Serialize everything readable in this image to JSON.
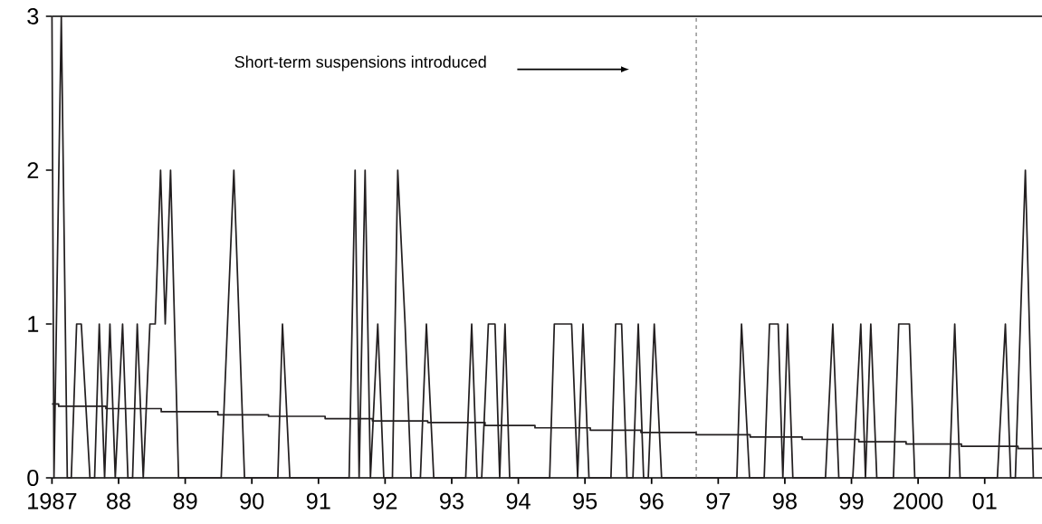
{
  "chart_data": {
    "type": "line",
    "series": [
      {
        "type": "line",
        "color": "#231f20",
        "x": [
          1987.0,
          1987.03,
          1987.14,
          1987.23,
          1987.29,
          1987.37,
          1987.44,
          1987.57,
          1987.64,
          1987.71,
          1987.79,
          1987.87,
          1987.95,
          1988.06,
          1988.14,
          1988.21,
          1988.28,
          1988.37,
          1988.47,
          1988.55,
          1988.63,
          1988.7,
          1988.78,
          1988.9,
          1989.54,
          1989.73,
          1989.89,
          1990.39,
          1990.46,
          1990.57,
          1991.46,
          1991.55,
          1991.61,
          1991.7,
          1991.78,
          1991.89,
          1991.98,
          1992.11,
          1992.19,
          1992.3,
          1992.39,
          1992.53,
          1992.62,
          1992.73,
          1993.21,
          1993.3,
          1993.38,
          1993.45,
          1993.55,
          1993.65,
          1993.72,
          1993.8,
          1993.87,
          1994.47,
          1994.54,
          1994.8,
          1994.89,
          1994.97,
          1995.06,
          1995.39,
          1995.46,
          1995.55,
          1995.63,
          1995.72,
          1995.8,
          1995.88,
          1995.95,
          1996.04,
          1996.15,
          1997.28,
          1997.35,
          1997.47,
          1997.69,
          1997.77,
          1997.9,
          1997.97,
          1998.04,
          1998.12,
          1998.61,
          1998.72,
          1998.81,
          1999.02,
          1999.14,
          1999.21,
          1999.29,
          1999.38,
          1999.63,
          1999.71,
          1999.87,
          1999.95,
          2000.47,
          2000.55,
          2000.63,
          2001.19,
          2001.31,
          2001.39,
          2001.46,
          2001.61,
          2001.73
        ],
        "values": [
          3,
          0,
          3,
          0,
          0,
          1,
          1,
          0,
          0,
          1,
          0,
          1,
          0,
          1,
          0,
          0,
          1,
          0,
          1,
          1,
          2,
          1,
          2,
          0,
          0,
          2,
          0,
          0,
          1,
          0,
          0,
          2,
          0,
          2,
          0,
          1,
          0,
          0,
          2,
          1,
          0,
          0,
          1,
          0,
          0,
          1,
          0,
          0,
          1,
          1,
          0,
          1,
          0,
          0,
          1,
          1,
          0,
          1,
          0,
          0,
          1,
          1,
          0,
          0,
          1,
          0,
          0,
          1,
          0,
          0,
          1,
          0,
          0,
          1,
          1,
          0,
          1,
          0,
          0,
          1,
          0,
          0,
          1,
          0,
          1,
          0,
          0,
          1,
          1,
          0,
          0,
          1,
          0,
          0,
          1,
          0,
          0,
          2,
          0
        ]
      },
      {
        "type": "step",
        "color": "#231f20",
        "x": [
          1987.0,
          1987.1,
          1987.81,
          1988.64,
          1989.49,
          1990.25,
          1991.1,
          1991.81,
          1992.64,
          1993.5,
          1994.25,
          1995.08,
          1995.84,
          1996.67,
          1997.48,
          1998.26,
          1999.11,
          1999.82,
          2000.65,
          2001.5,
          2001.86
        ],
        "values": [
          0.48,
          0.465,
          0.45,
          0.43,
          0.41,
          0.4,
          0.385,
          0.37,
          0.36,
          0.34,
          0.325,
          0.31,
          0.295,
          0.28,
          0.265,
          0.25,
          0.235,
          0.22,
          0.205,
          0.19,
          0.19
        ]
      }
    ],
    "xlim": [
      1987,
      2001.86
    ],
    "xticks": [
      1987,
      {
        "value": 1988,
        "label": "88"
      },
      {
        "value": 1989,
        "label": "89"
      },
      {
        "value": 1990,
        "label": "90"
      },
      {
        "value": 1991,
        "label": "91"
      },
      {
        "value": 1992,
        "label": "92"
      },
      {
        "value": 1993,
        "label": "93"
      },
      {
        "value": 1994,
        "label": "94"
      },
      {
        "value": 1995,
        "label": "95"
      },
      {
        "value": 1996,
        "label": "96"
      },
      {
        "value": 1997,
        "label": "97"
      },
      {
        "value": 1998,
        "label": "98"
      },
      {
        "value": 1999,
        "label": "99"
      },
      2000,
      {
        "value": 2001,
        "label": "01"
      }
    ],
    "ylim": [
      0,
      3
    ],
    "yticks": [
      0,
      1,
      2,
      3
    ],
    "ref_lines": [
      {
        "axis": "x",
        "value": 1996.67,
        "color": "#555555",
        "line_style": "dashed"
      }
    ],
    "annotations": [
      "Short-term suspensions introduced"
    ],
    "line_style": "solid",
    "marker": "none"
  }
}
